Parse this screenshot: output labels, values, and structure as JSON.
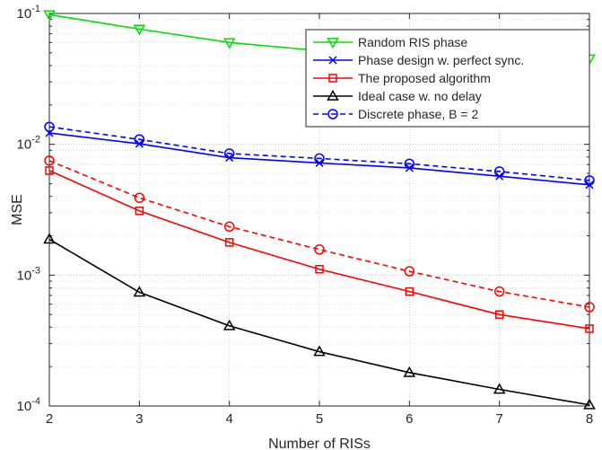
{
  "chart_data": {
    "type": "line",
    "xlabel": "Number of RISs",
    "ylabel": "MSE",
    "xlim": [
      2,
      8
    ],
    "ylim": [
      0.0001,
      0.1
    ],
    "yscale": "log",
    "grid": true,
    "legend_position": "top-right",
    "x": [
      2,
      3,
      4,
      5,
      6,
      7,
      8
    ],
    "x_tick_labels": [
      "2",
      "3",
      "4",
      "5",
      "6",
      "7",
      "8"
    ],
    "y_ticks": [
      {
        "value": 0.1,
        "base": "10",
        "exp": "-1"
      },
      {
        "value": 0.01,
        "base": "10",
        "exp": "-2"
      },
      {
        "value": 0.001,
        "base": "10",
        "exp": "-3"
      },
      {
        "value": 0.0001,
        "base": "10",
        "exp": "-4"
      }
    ],
    "series": [
      {
        "name": "Random RIS phase",
        "color": "#00e000",
        "marker": "triangle-down",
        "dash": "solid",
        "values": [
          0.098,
          0.076,
          0.06,
          0.052,
          0.05,
          0.048,
          0.045
        ]
      },
      {
        "name": "Phase design w. perfect sync.",
        "color": "#0000ff",
        "marker": "x",
        "dash": "solid",
        "values": [
          0.0122,
          0.0101,
          0.0079,
          0.0072,
          0.0066,
          0.0057,
          0.0049
        ]
      },
      {
        "name": "The proposed algorithm",
        "color": "#ff0000",
        "marker": "square",
        "dash": "solid",
        "values": [
          0.0063,
          0.0031,
          0.00178,
          0.00111,
          0.00075,
          0.0005,
          0.00039
        ]
      },
      {
        "name": "Ideal case w. no delay",
        "color": "#000000",
        "marker": "triangle-up",
        "dash": "solid",
        "values": [
          0.00188,
          0.00074,
          0.00041,
          0.00026,
          0.00018,
          0.000134,
          0.000102
        ]
      },
      {
        "name": "Discrete phase, B = 2",
        "color": "#0000ff",
        "marker": "circle",
        "dash": "dashed",
        "values": [
          0.0136,
          0.0109,
          0.0085,
          0.0078,
          0.0071,
          0.0062,
          0.0053
        ]
      },
      {
        "name": "",
        "color": "#ff0000",
        "marker": "circle",
        "dash": "dashed",
        "values": [
          0.0075,
          0.0039,
          0.00235,
          0.00157,
          0.00107,
          0.00075,
          0.00057
        ]
      }
    ]
  }
}
